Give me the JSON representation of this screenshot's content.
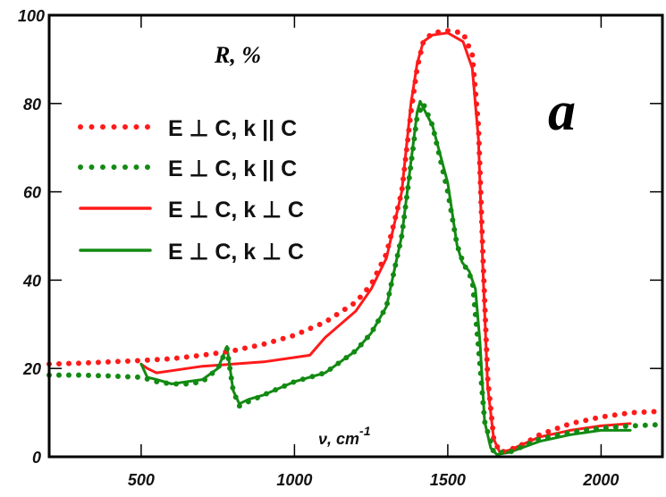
{
  "chart_data": {
    "type": "line",
    "title": "",
    "panel_label": "a",
    "ylabel": "R, %",
    "xlabel": "ν, cm",
    "xlabel_sup": "-1",
    "xlim": [
      200,
      2200
    ],
    "ylim": [
      0,
      100
    ],
    "xticks": [
      500,
      1000,
      1500,
      2000
    ],
    "yticks": [
      0,
      20,
      40,
      60,
      80,
      100
    ],
    "grid": false,
    "legend_position": "top-left",
    "series": [
      {
        "name": "E ⊥ C, k || C",
        "color": "#ff1a1a",
        "style": "dotted",
        "x": [
          200,
          300,
          400,
          500,
          600,
          700,
          800,
          900,
          1000,
          1100,
          1200,
          1250,
          1300,
          1350,
          1380,
          1400,
          1420,
          1450,
          1500,
          1550,
          1580,
          1600,
          1615,
          1630,
          1650,
          1670,
          1700,
          1750,
          1800,
          1900,
          2000,
          2100,
          2200
        ],
        "y": [
          21,
          21.2,
          21.5,
          21.8,
          22.2,
          23,
          24,
          25.5,
          27.5,
          30.5,
          35,
          39,
          46,
          60,
          78,
          88,
          94,
          96,
          96.5,
          96,
          91,
          75,
          45,
          18,
          4,
          1,
          1.5,
          3,
          5,
          7.5,
          9,
          10,
          10.3
        ]
      },
      {
        "name": "E ⊥ C, k || C",
        "color": "#138a13",
        "style": "dotted",
        "x": [
          200,
          300,
          400,
          500,
          550,
          600,
          650,
          700,
          750,
          780,
          800,
          820,
          850,
          900,
          1000,
          1100,
          1200,
          1250,
          1300,
          1350,
          1400,
          1420,
          1450,
          1500,
          1530,
          1550,
          1580,
          1600,
          1620,
          1650,
          1700,
          1800,
          1900,
          2000,
          2100,
          2200
        ],
        "y": [
          18.5,
          18.5,
          18.3,
          18,
          17,
          16.5,
          16.5,
          17,
          20,
          24.5,
          15,
          11.5,
          12.5,
          14,
          17,
          19,
          24,
          28,
          34,
          50,
          77,
          80,
          75,
          60,
          48,
          44,
          40,
          25,
          8,
          1,
          1,
          4,
          5.5,
          6.5,
          7,
          7.3
        ]
      },
      {
        "name": "E ⊥ C, k ⊥  C",
        "color": "#ff1a1a",
        "style": "solid",
        "x": [
          500,
          520,
          550,
          600,
          650,
          700,
          800,
          900,
          1000,
          1050,
          1100,
          1200,
          1250,
          1300,
          1350,
          1380,
          1400,
          1420,
          1450,
          1500,
          1550,
          1580,
          1600,
          1615,
          1630,
          1650,
          1670,
          1700,
          1750,
          1800,
          1900,
          2000,
          2095
        ],
        "y": [
          21,
          20,
          19,
          19.5,
          20,
          20.5,
          21,
          21.5,
          22.5,
          23,
          27,
          33,
          38,
          45,
          60,
          80,
          89,
          94,
          95.5,
          96,
          94,
          88,
          72,
          42,
          16,
          4,
          1,
          1.5,
          3,
          4.5,
          6,
          7,
          7.5
        ]
      },
      {
        "name": "E ⊥ C, k ⊥  C",
        "color": "#138a13",
        "style": "solid",
        "x": [
          500,
          520,
          550,
          600,
          650,
          700,
          750,
          780,
          800,
          820,
          850,
          900,
          1000,
          1100,
          1200,
          1250,
          1300,
          1350,
          1400,
          1410,
          1420,
          1450,
          1500,
          1530,
          1547,
          1570,
          1590,
          1605,
          1620,
          1640,
          1660,
          1700,
          1800,
          1900,
          2000,
          2095
        ],
        "y": [
          21,
          18,
          17.5,
          16.5,
          17,
          17.5,
          20,
          25,
          15,
          12,
          13,
          14,
          17,
          19,
          24,
          28,
          34,
          50,
          78,
          80.5,
          79,
          75,
          62,
          48,
          44,
          42,
          38,
          26,
          8,
          2,
          0.5,
          1,
          3.5,
          5,
          6,
          6
        ]
      }
    ]
  }
}
